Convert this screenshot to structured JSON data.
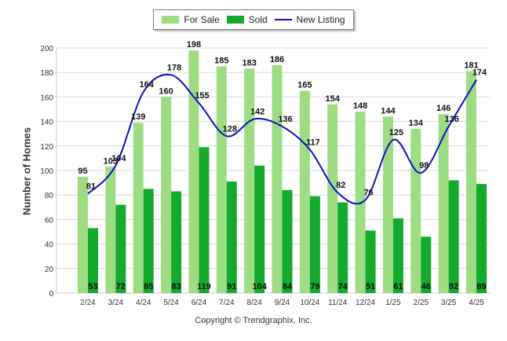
{
  "legend": {
    "for_sale": "For Sale",
    "sold": "Sold",
    "new_listing": "New Listing"
  },
  "copyright": "Copyright © Trendgraphix, Inc.",
  "chart_data": {
    "type": "bar",
    "ylabel": "Number of Homes",
    "xlabel": "",
    "ylim": [
      0,
      200
    ],
    "yticks": [
      0,
      20,
      40,
      60,
      80,
      100,
      120,
      140,
      160,
      180,
      200
    ],
    "grid": true,
    "legend_position": "top-center",
    "categories": [
      "2/24",
      "3/24",
      "4/24",
      "5/24",
      "6/24",
      "7/24",
      "8/24",
      "9/24",
      "10/24",
      "11/24",
      "12/24",
      "1/25",
      "2/25",
      "3/25",
      "4/25"
    ],
    "series": [
      {
        "name": "For Sale",
        "kind": "bar",
        "color": "#9ddc82",
        "values": [
          95,
          103,
          139,
          160,
          198,
          185,
          183,
          186,
          165,
          154,
          148,
          144,
          134,
          146,
          181
        ]
      },
      {
        "name": "Sold",
        "kind": "bar",
        "color": "#13aa2e",
        "values": [
          53,
          72,
          85,
          83,
          119,
          91,
          104,
          84,
          79,
          74,
          51,
          61,
          46,
          92,
          89
        ]
      },
      {
        "name": "New Listing",
        "kind": "line",
        "color": "#1010c8",
        "values": [
          81,
          104,
          164,
          178,
          155,
          128,
          142,
          136,
          117,
          82,
          76,
          125,
          98,
          136,
          174
        ]
      }
    ]
  }
}
